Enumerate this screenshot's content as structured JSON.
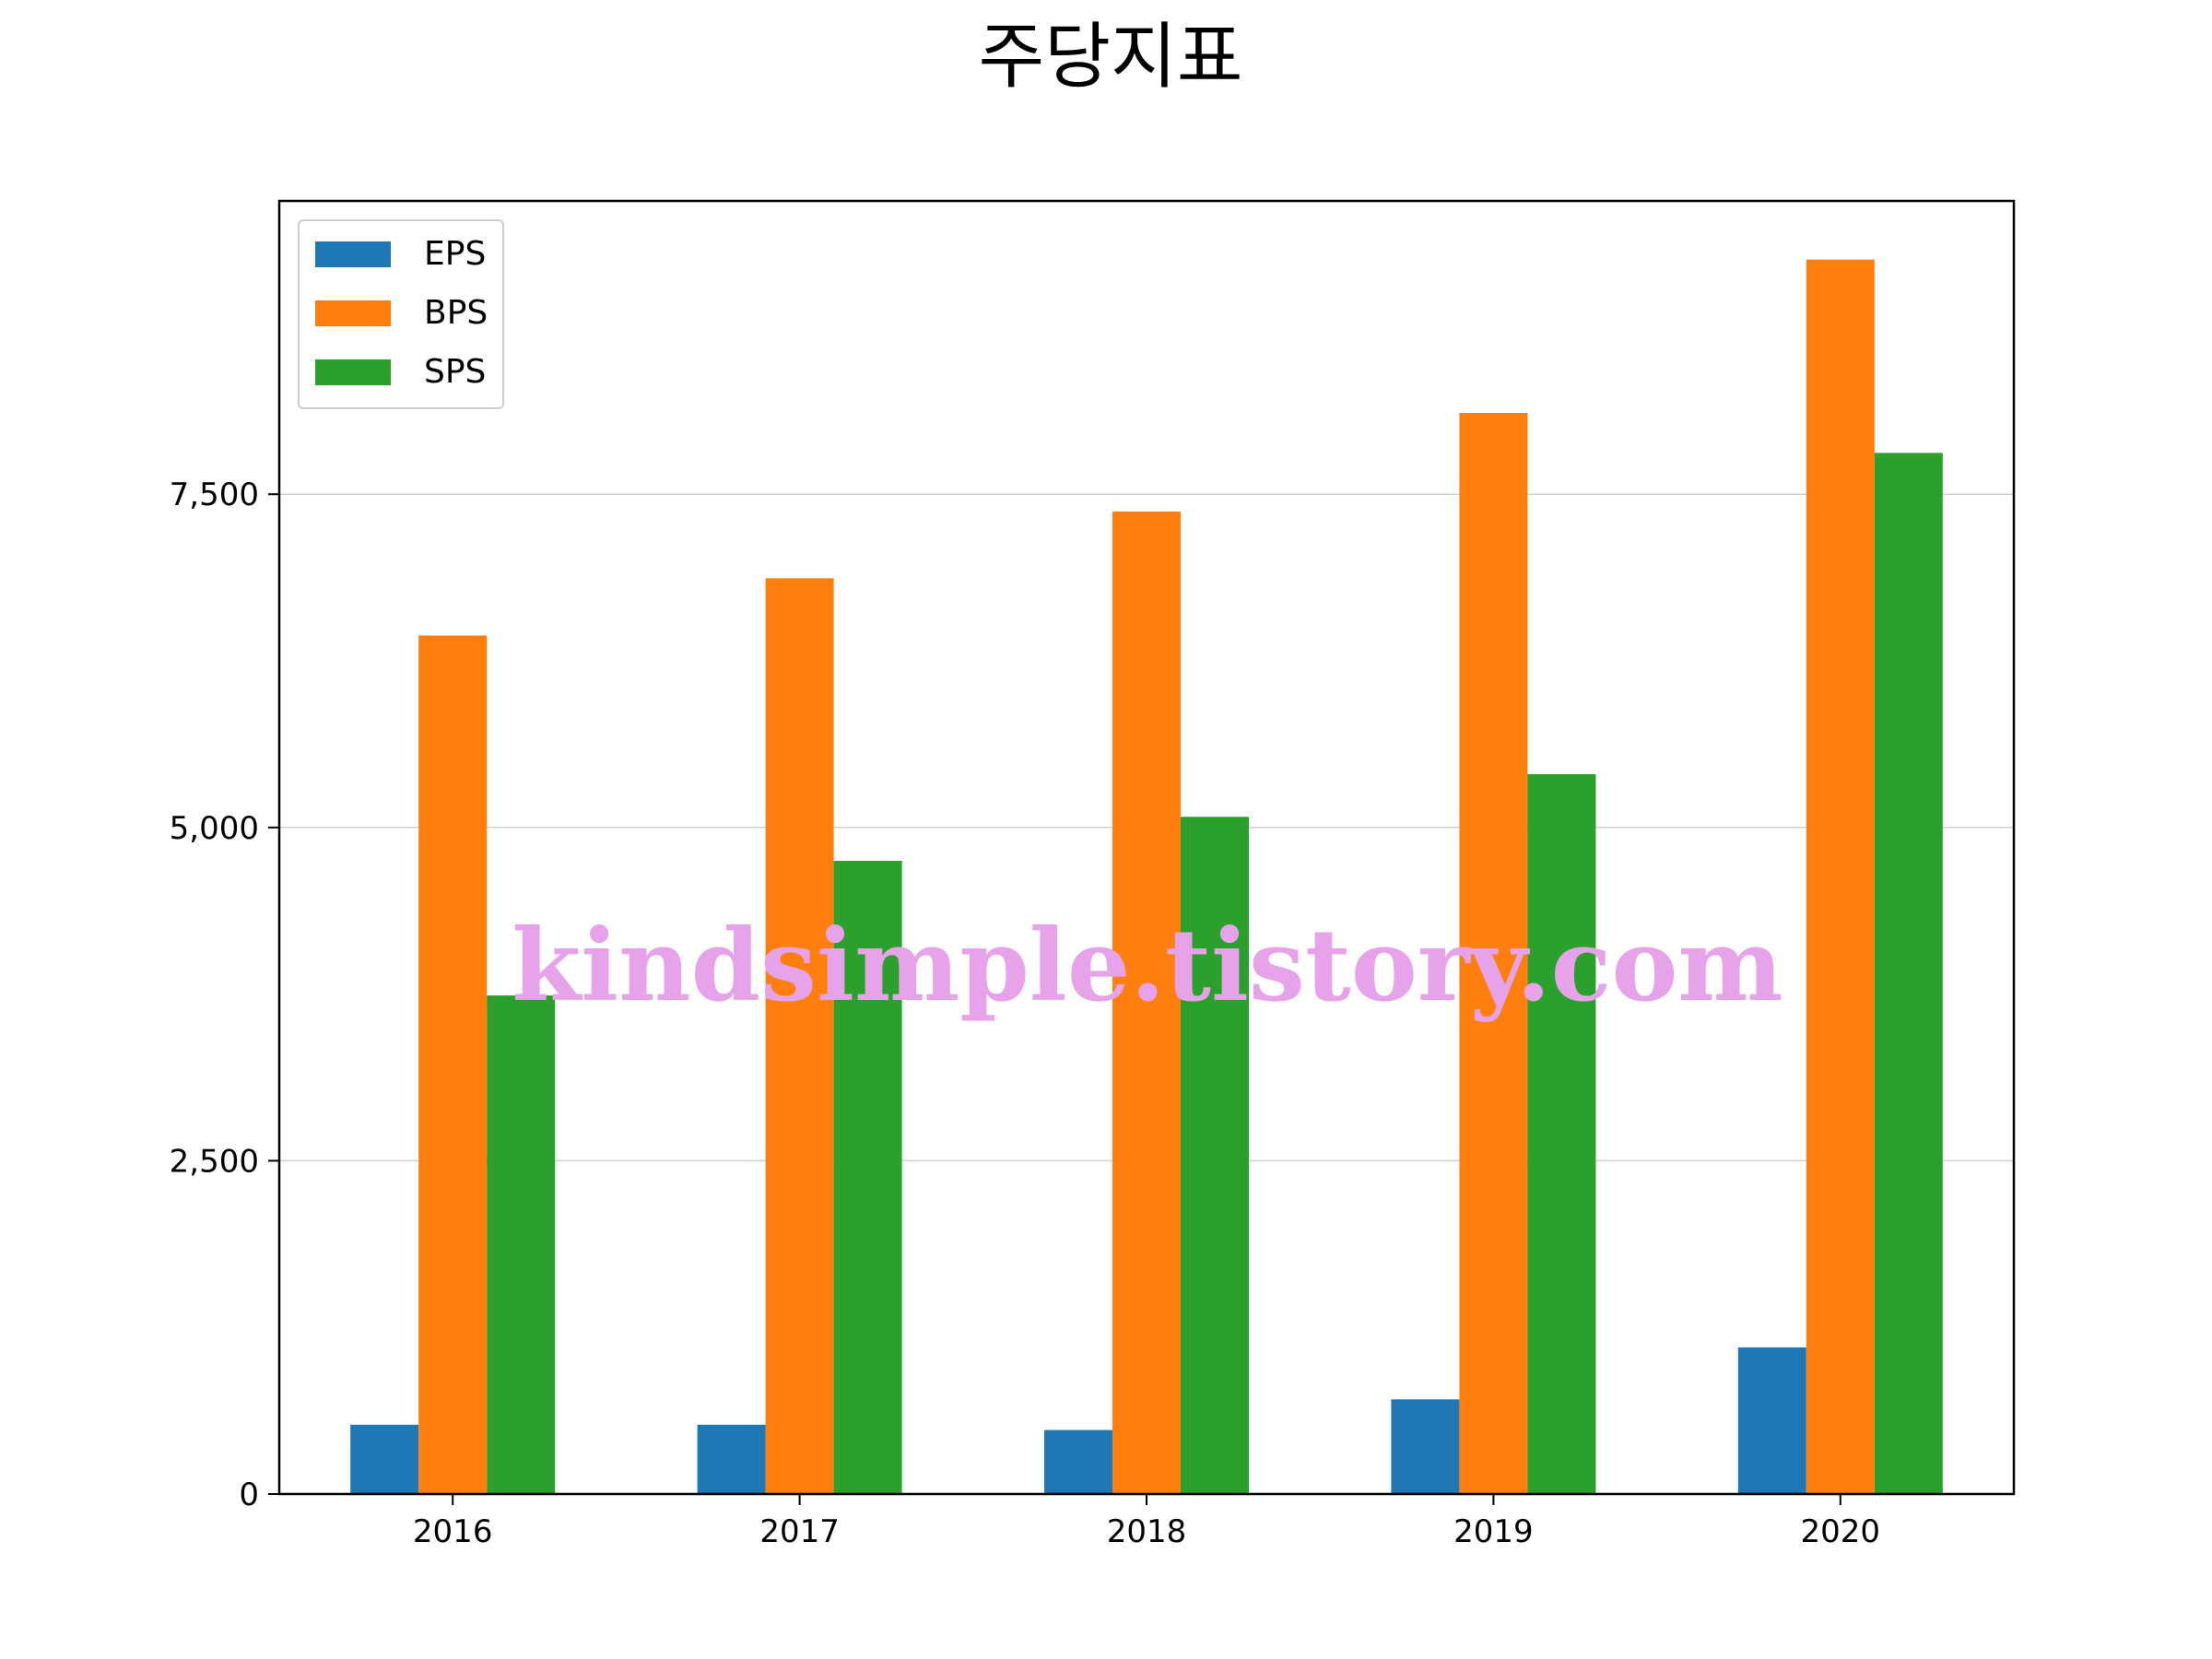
{
  "chart_data": {
    "type": "bar",
    "title": "주당지표",
    "categories": [
      "2016",
      "2017",
      "2018",
      "2019",
      "2020"
    ],
    "series": [
      {
        "name": "EPS",
        "color": "#1f77b4",
        "values": [
          520,
          520,
          480,
          710,
          1100
        ]
      },
      {
        "name": "BPS",
        "color": "#ff7f0e",
        "values": [
          6440,
          6870,
          7370,
          8110,
          9260
        ]
      },
      {
        "name": "SPS",
        "color": "#2ca02c",
        "values": [
          3740,
          4750,
          5080,
          5400,
          7810
        ]
      }
    ],
    "ylim": [
      0,
      9700
    ],
    "yticks": [
      0,
      2500,
      5000,
      7500
    ],
    "ytick_labels": [
      "0",
      "2,500",
      "5,000",
      "7,500"
    ],
    "grid": "y",
    "legend_position": "top-left"
  },
  "watermark": "kindsimple.tistory.com"
}
